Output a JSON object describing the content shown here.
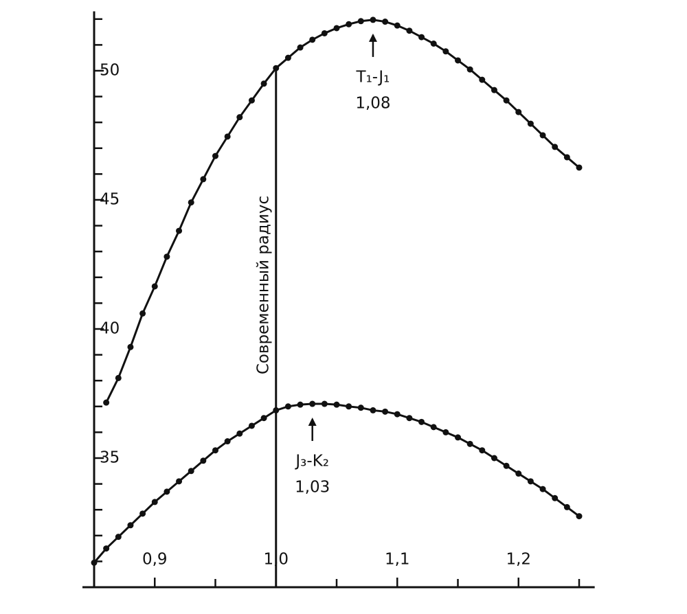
{
  "chart_data": {
    "type": "line",
    "xlim": [
      0.85,
      1.26
    ],
    "ylim": [
      30,
      52.3
    ],
    "xticks": [
      {
        "value": 0.9,
        "label": "0,9"
      },
      {
        "value": 1.0,
        "label": "1,0"
      },
      {
        "value": 1.1,
        "label": "1,1"
      },
      {
        "value": 1.2,
        "label": "1,2"
      }
    ],
    "x_minor_ticks": [
      0.85,
      0.95,
      1.05,
      1.15,
      1.25
    ],
    "yticks": [
      35,
      40,
      45,
      50
    ],
    "y_minor_ticks": [
      31,
      32,
      33,
      34,
      36,
      37,
      38,
      39,
      41,
      42,
      43,
      44,
      46,
      47,
      48,
      49,
      51,
      52
    ],
    "color": "#111111",
    "markers": true,
    "series": [
      {
        "x": [
          0.86,
          0.87,
          0.88,
          0.89,
          0.9,
          0.91,
          0.92,
          0.93,
          0.94,
          0.95,
          0.96,
          0.97,
          0.98,
          0.99,
          1.0,
          1.01,
          1.02,
          1.03,
          1.04,
          1.05,
          1.06,
          1.07,
          1.08,
          1.09,
          1.1,
          1.11,
          1.12,
          1.13,
          1.14,
          1.15,
          1.16,
          1.17,
          1.18,
          1.19,
          1.2,
          1.21,
          1.22,
          1.23,
          1.24,
          1.25
        ],
        "values": [
          37.15,
          38.1,
          39.3,
          40.6,
          41.65,
          42.8,
          43.8,
          44.9,
          45.8,
          46.7,
          47.45,
          48.2,
          48.85,
          49.5,
          50.1,
          50.5,
          50.9,
          51.2,
          51.45,
          51.65,
          51.8,
          51.92,
          51.97,
          51.9,
          51.75,
          51.55,
          51.3,
          51.05,
          50.75,
          50.4,
          50.05,
          49.65,
          49.25,
          48.85,
          48.4,
          47.95,
          47.5,
          47.05,
          46.65,
          46.25
        ]
      },
      {
        "x": [
          0.85,
          0.86,
          0.87,
          0.88,
          0.89,
          0.9,
          0.91,
          0.92,
          0.93,
          0.94,
          0.95,
          0.96,
          0.97,
          0.98,
          0.99,
          1.0,
          1.01,
          1.02,
          1.03,
          1.04,
          1.05,
          1.06,
          1.07,
          1.08,
          1.09,
          1.1,
          1.11,
          1.12,
          1.13,
          1.14,
          1.15,
          1.16,
          1.17,
          1.18,
          1.19,
          1.2,
          1.21,
          1.22,
          1.23,
          1.24,
          1.25
        ],
        "values": [
          30.95,
          31.5,
          31.95,
          32.4,
          32.85,
          33.3,
          33.7,
          34.1,
          34.5,
          34.9,
          35.3,
          35.65,
          35.95,
          36.25,
          36.55,
          36.85,
          37.0,
          37.07,
          37.1,
          37.1,
          37.07,
          37.0,
          36.95,
          36.85,
          36.8,
          36.7,
          36.55,
          36.4,
          36.2,
          36.0,
          35.8,
          35.55,
          35.3,
          35.0,
          34.7,
          34.4,
          34.1,
          33.8,
          33.45,
          33.1,
          32.75
        ]
      }
    ],
    "reference_line": {
      "x": 1.0,
      "label": "Современный радиус"
    },
    "annotations": [
      {
        "label": "T₁-J₁",
        "x": {
          "value": 1.08,
          "label": "1,08"
        }
      },
      {
        "label": "J₃-K₂",
        "x": {
          "value": 1.03,
          "label": "1,03"
        }
      }
    ]
  }
}
